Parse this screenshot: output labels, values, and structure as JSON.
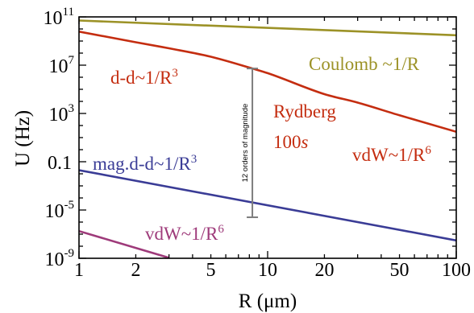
{
  "chart_data": {
    "type": "line",
    "xscale": "log",
    "yscale": "log",
    "xlabel": "R (μm)",
    "ylabel": "U (Hz)",
    "xlim": [
      1,
      100
    ],
    "ylim": [
      1e-09,
      100000000000.0
    ],
    "x_ticks": [
      "1",
      "2",
      "5",
      "10",
      "20",
      "50",
      "100"
    ],
    "y_ticks": [
      {
        "base": "10",
        "exp": "11",
        "value": 100000000000.0
      },
      {
        "base": "10",
        "exp": "7",
        "value": 10000000.0
      },
      {
        "base": "10",
        "exp": "3",
        "value": 1000.0
      },
      {
        "base": "0.1",
        "exp": "",
        "value": 0.1
      },
      {
        "base": "10",
        "exp": "-5",
        "value": 1e-05
      },
      {
        "base": "10",
        "exp": "-9",
        "value": 1e-09
      }
    ],
    "grid": false,
    "series": [
      {
        "name": "Coulomb ~1/R",
        "color": "#9c9227",
        "x": [
          1,
          100
        ],
        "y": [
          50000000000.0,
          3000000000.0
        ]
      },
      {
        "name": "Rydberg",
        "color": "#c42d10",
        "x": [
          1,
          2,
          3,
          5,
          8.3,
          10,
          20,
          30,
          50,
          100
        ],
        "y": [
          6000000000.0,
          800000000.0,
          250000000.0,
          50000000.0,
          5300000.0,
          2200000.0,
          40000.0,
          8000.0,
          700.0,
          30.0
        ]
      },
      {
        "name": "mag.d-d~1/R^3",
        "color": "#3a3c96",
        "x": [
          1,
          100
        ],
        "y": [
          0.02,
          3e-08
        ]
      },
      {
        "name": "vdW~1/R^6",
        "color": "#9e3a7a",
        "x": [
          1,
          3
        ],
        "y": [
          1.8e-07,
          1.1e-09
        ]
      }
    ],
    "annotations": {
      "coulomb": {
        "text": "Coulomb ~1/R",
        "color": "#9c9227"
      },
      "dd": {
        "text": "d-d~1/R",
        "sup": "3",
        "color": "#c42d10"
      },
      "rydberg": {
        "text": "Rydberg",
        "color": "#c42d10"
      },
      "state_num": "100",
      "state_sub": "s",
      "vdw_ryd": {
        "text": "vdW~1/R",
        "sup": "6",
        "color": "#c42d10"
      },
      "magdd": {
        "text": "mag.d-d~1/R",
        "sup": "3",
        "color": "#3a3c96"
      },
      "vdw_low": {
        "text": "vdW~1/R",
        "sup": "6",
        "color": "#9e3a7a"
      }
    },
    "arrow": {
      "x": 8.3,
      "y_top": 5300000.0,
      "y_bottom": 2.5e-06,
      "label": "12 orders of magnitude",
      "color": "#7d7d7d"
    }
  }
}
